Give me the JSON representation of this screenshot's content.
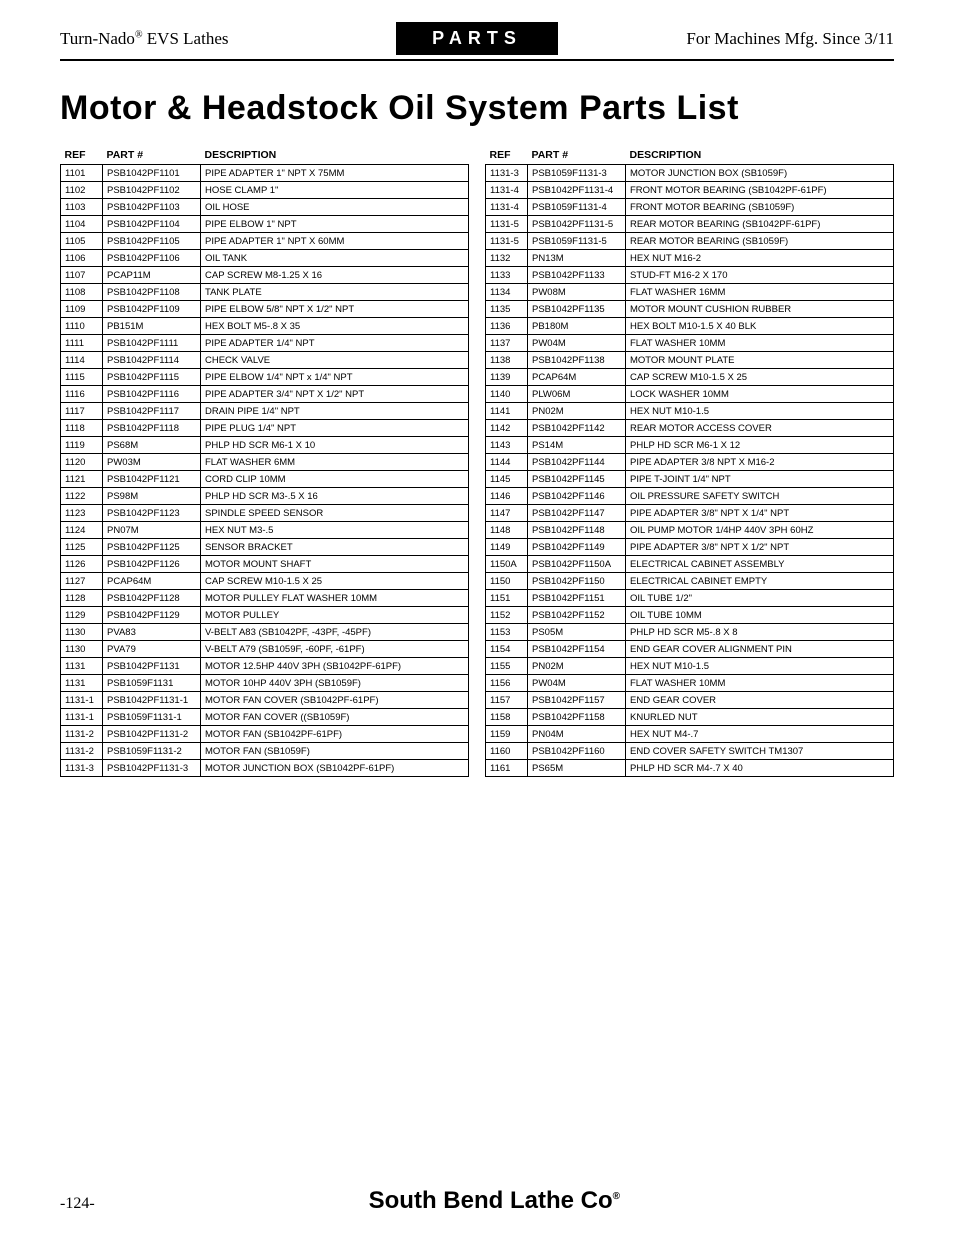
{
  "header": {
    "left_html": "Turn-Nado<sup class=\"reg\">®</sup> EVS Lathes",
    "center": "PARTS",
    "right": "For Machines Mfg. Since 3/11"
  },
  "title": "Motor & Headstock Oil System Parts List",
  "columns": [
    "REF",
    "PART #",
    "DESCRIPTION"
  ],
  "left_rows": [
    [
      "1101",
      "PSB1042PF1101",
      "PIPE ADAPTER 1\" NPT X 75MM"
    ],
    [
      "1102",
      "PSB1042PF1102",
      "HOSE CLAMP 1\""
    ],
    [
      "1103",
      "PSB1042PF1103",
      "OIL HOSE"
    ],
    [
      "1104",
      "PSB1042PF1104",
      "PIPE ELBOW 1\" NPT"
    ],
    [
      "1105",
      "PSB1042PF1105",
      "PIPE ADAPTER 1\" NPT X 60MM"
    ],
    [
      "1106",
      "PSB1042PF1106",
      "OIL TANK"
    ],
    [
      "1107",
      "PCAP11M",
      "CAP SCREW M8-1.25 X 16"
    ],
    [
      "1108",
      "PSB1042PF1108",
      "TANK PLATE"
    ],
    [
      "1109",
      "PSB1042PF1109",
      "PIPE ELBOW 5/8\" NPT X 1/2\" NPT"
    ],
    [
      "1110",
      "PB151M",
      "HEX BOLT M5-.8 X 35"
    ],
    [
      "1111",
      "PSB1042PF1111",
      "PIPE ADAPTER 1/4\" NPT"
    ],
    [
      "1114",
      "PSB1042PF1114",
      "CHECK VALVE"
    ],
    [
      "1115",
      "PSB1042PF1115",
      "PIPE ELBOW 1/4\" NPT x 1/4\" NPT"
    ],
    [
      "1116",
      "PSB1042PF1116",
      "PIPE ADAPTER 3/4\" NPT X 1/2\" NPT"
    ],
    [
      "1117",
      "PSB1042PF1117",
      "DRAIN PIPE 1/4\" NPT"
    ],
    [
      "1118",
      "PSB1042PF1118",
      "PIPE PLUG 1/4\" NPT"
    ],
    [
      "1119",
      "PS68M",
      "PHLP HD SCR M6-1 X 10"
    ],
    [
      "1120",
      "PW03M",
      "FLAT WASHER 6MM"
    ],
    [
      "1121",
      "PSB1042PF1121",
      "CORD CLIP 10MM"
    ],
    [
      "1122",
      "PS98M",
      "PHLP HD SCR M3-.5 X 16"
    ],
    [
      "1123",
      "PSB1042PF1123",
      "SPINDLE SPEED SENSOR"
    ],
    [
      "1124",
      "PN07M",
      "HEX NUT M3-.5"
    ],
    [
      "1125",
      "PSB1042PF1125",
      "SENSOR BRACKET"
    ],
    [
      "1126",
      "PSB1042PF1126",
      "MOTOR MOUNT SHAFT"
    ],
    [
      "1127",
      "PCAP64M",
      "CAP SCREW M10-1.5 X 25"
    ],
    [
      "1128",
      "PSB1042PF1128",
      "MOTOR PULLEY FLAT WASHER 10MM"
    ],
    [
      "1129",
      "PSB1042PF1129",
      "MOTOR PULLEY"
    ],
    [
      "1130",
      "PVA83",
      "V-BELT A83 (SB1042PF, -43PF, -45PF)"
    ],
    [
      "1130",
      "PVA79",
      "V-BELT A79 (SB1059F, -60PF, -61PF)"
    ],
    [
      "1131",
      "PSB1042PF1131",
      "MOTOR 12.5HP 440V 3PH (SB1042PF-61PF)"
    ],
    [
      "1131",
      "PSB1059F1131",
      "MOTOR 10HP 440V 3PH (SB1059F)"
    ],
    [
      "1131-1",
      "PSB1042PF1131-1",
      "MOTOR FAN COVER (SB1042PF-61PF)"
    ],
    [
      "1131-1",
      "PSB1059F1131-1",
      "MOTOR FAN COVER ((SB1059F)"
    ],
    [
      "1131-2",
      "PSB1042PF1131-2",
      "MOTOR FAN (SB1042PF-61PF)"
    ],
    [
      "1131-2",
      "PSB1059F1131-2",
      "MOTOR FAN (SB1059F)"
    ],
    [
      "1131-3",
      "PSB1042PF1131-3",
      "MOTOR JUNCTION BOX (SB1042PF-61PF)"
    ]
  ],
  "right_rows": [
    [
      "1131-3",
      "PSB1059F1131-3",
      "MOTOR JUNCTION BOX (SB1059F)"
    ],
    [
      "1131-4",
      "PSB1042PF1131-4",
      "FRONT MOTOR BEARING (SB1042PF-61PF)"
    ],
    [
      "1131-4",
      "PSB1059F1131-4",
      "FRONT MOTOR BEARING (SB1059F)"
    ],
    [
      "1131-5",
      "PSB1042PF1131-5",
      "REAR MOTOR BEARING (SB1042PF-61PF)"
    ],
    [
      "1131-5",
      "PSB1059F1131-5",
      "REAR MOTOR BEARING (SB1059F)"
    ],
    [
      "1132",
      "PN13M",
      "HEX NUT M16-2"
    ],
    [
      "1133",
      "PSB1042PF1133",
      "STUD-FT M16-2 X 170"
    ],
    [
      "1134",
      "PW08M",
      "FLAT WASHER 16MM"
    ],
    [
      "1135",
      "PSB1042PF1135",
      "MOTOR MOUNT CUSHION RUBBER"
    ],
    [
      "1136",
      "PB180M",
      "HEX BOLT M10-1.5 X 40 BLK"
    ],
    [
      "1137",
      "PW04M",
      "FLAT WASHER 10MM"
    ],
    [
      "1138",
      "PSB1042PF1138",
      "MOTOR MOUNT PLATE"
    ],
    [
      "1139",
      "PCAP64M",
      "CAP SCREW M10-1.5 X 25"
    ],
    [
      "1140",
      "PLW06M",
      "LOCK WASHER 10MM"
    ],
    [
      "1141",
      "PN02M",
      "HEX NUT M10-1.5"
    ],
    [
      "1142",
      "PSB1042PF1142",
      "REAR MOTOR ACCESS COVER"
    ],
    [
      "1143",
      "PS14M",
      "PHLP HD SCR M6-1 X 12"
    ],
    [
      "1144",
      "PSB1042PF1144",
      "PIPE ADAPTER 3/8 NPT X M16-2"
    ],
    [
      "1145",
      "PSB1042PF1145",
      "PIPE T-JOINT 1/4\" NPT"
    ],
    [
      "1146",
      "PSB1042PF1146",
      "OIL PRESSURE SAFETY SWITCH"
    ],
    [
      "1147",
      "PSB1042PF1147",
      "PIPE ADAPTER 3/8\" NPT X 1/4\" NPT"
    ],
    [
      "1148",
      "PSB1042PF1148",
      "OIL PUMP MOTOR 1/4HP 440V 3PH 60HZ"
    ],
    [
      "1149",
      "PSB1042PF1149",
      "PIPE ADAPTER 3/8\" NPT X 1/2\" NPT"
    ],
    [
      "1150A",
      "PSB1042PF1150A",
      "ELECTRICAL CABINET ASSEMBLY"
    ],
    [
      "1150",
      "PSB1042PF1150",
      "ELECTRICAL CABINET EMPTY"
    ],
    [
      "1151",
      "PSB1042PF1151",
      "OIL TUBE 1/2\""
    ],
    [
      "1152",
      "PSB1042PF1152",
      "OIL TUBE 10MM"
    ],
    [
      "1153",
      "PS05M",
      "PHLP HD SCR M5-.8 X 8"
    ],
    [
      "1154",
      "PSB1042PF1154",
      "END GEAR COVER ALIGNMENT PIN"
    ],
    [
      "1155",
      "PN02M",
      "HEX NUT M10-1.5"
    ],
    [
      "1156",
      "PW04M",
      "FLAT WASHER 10MM"
    ],
    [
      "1157",
      "PSB1042PF1157",
      "END GEAR COVER"
    ],
    [
      "1158",
      "PSB1042PF1158",
      "KNURLED NUT"
    ],
    [
      "1159",
      "PN04M",
      "HEX NUT M4-.7"
    ],
    [
      "1160",
      "PSB1042PF1160",
      "END COVER SAFETY SWITCH TM1307"
    ],
    [
      "1161",
      "PS65M",
      "PHLP HD SCR M4-.7 X 40"
    ]
  ],
  "footer": {
    "page_number": "-124-",
    "company_html": "South Bend Lathe Co<span class=\"reg-dot\">®</span>"
  }
}
